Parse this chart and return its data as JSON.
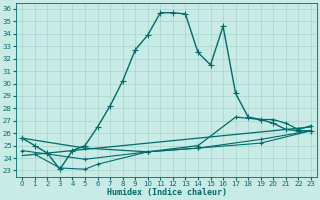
{
  "xlabel": "Humidex (Indice chaleur)",
  "bg_color": "#c8ebe6",
  "grid_color": "#a8d4ce",
  "line_color": "#006b6b",
  "xlim": [
    -0.5,
    23.5
  ],
  "ylim": [
    22.5,
    36.5
  ],
  "xticks": [
    0,
    1,
    2,
    3,
    4,
    5,
    6,
    7,
    8,
    9,
    10,
    11,
    12,
    13,
    14,
    15,
    16,
    17,
    18,
    19,
    20,
    21,
    22,
    23
  ],
  "yticks": [
    23,
    24,
    25,
    26,
    27,
    28,
    29,
    30,
    31,
    32,
    33,
    34,
    35,
    36
  ],
  "series": [
    {
      "x": [
        0,
        1,
        2,
        3,
        4,
        5,
        6,
        7,
        8,
        9,
        10,
        11,
        12,
        13,
        14,
        15,
        16,
        17,
        18,
        19,
        20,
        21,
        22,
        23
      ],
      "y": [
        25.6,
        25.0,
        24.4,
        23.1,
        24.6,
        25.0,
        26.5,
        28.2,
        30.2,
        32.7,
        33.9,
        35.7,
        35.7,
        35.6,
        32.5,
        31.5,
        34.6,
        29.2,
        27.3,
        27.1,
        26.8,
        26.3,
        26.2,
        26.2
      ],
      "marker": "+",
      "lw": 1.0,
      "ms": 4
    },
    {
      "x": [
        0,
        5,
        10,
        14,
        17,
        19,
        20,
        21,
        22,
        23
      ],
      "y": [
        25.6,
        24.8,
        24.5,
        25.0,
        27.3,
        27.1,
        27.1,
        26.8,
        26.3,
        26.6
      ],
      "marker": "+",
      "lw": 0.9,
      "ms": 3
    },
    {
      "x": [
        0,
        23
      ],
      "y": [
        24.2,
        26.5
      ],
      "marker": "None",
      "lw": 0.9,
      "ms": 0
    },
    {
      "x": [
        0,
        5,
        10,
        14,
        19,
        23
      ],
      "y": [
        24.6,
        23.9,
        24.5,
        24.8,
        25.5,
        26.2
      ],
      "marker": "+",
      "lw": 0.8,
      "ms": 3
    },
    {
      "x": [
        1,
        3,
        5,
        6,
        10,
        14,
        19,
        23
      ],
      "y": [
        24.3,
        23.2,
        23.1,
        23.5,
        24.5,
        24.8,
        25.2,
        26.2
      ],
      "marker": "+",
      "lw": 0.8,
      "ms": 3
    }
  ]
}
